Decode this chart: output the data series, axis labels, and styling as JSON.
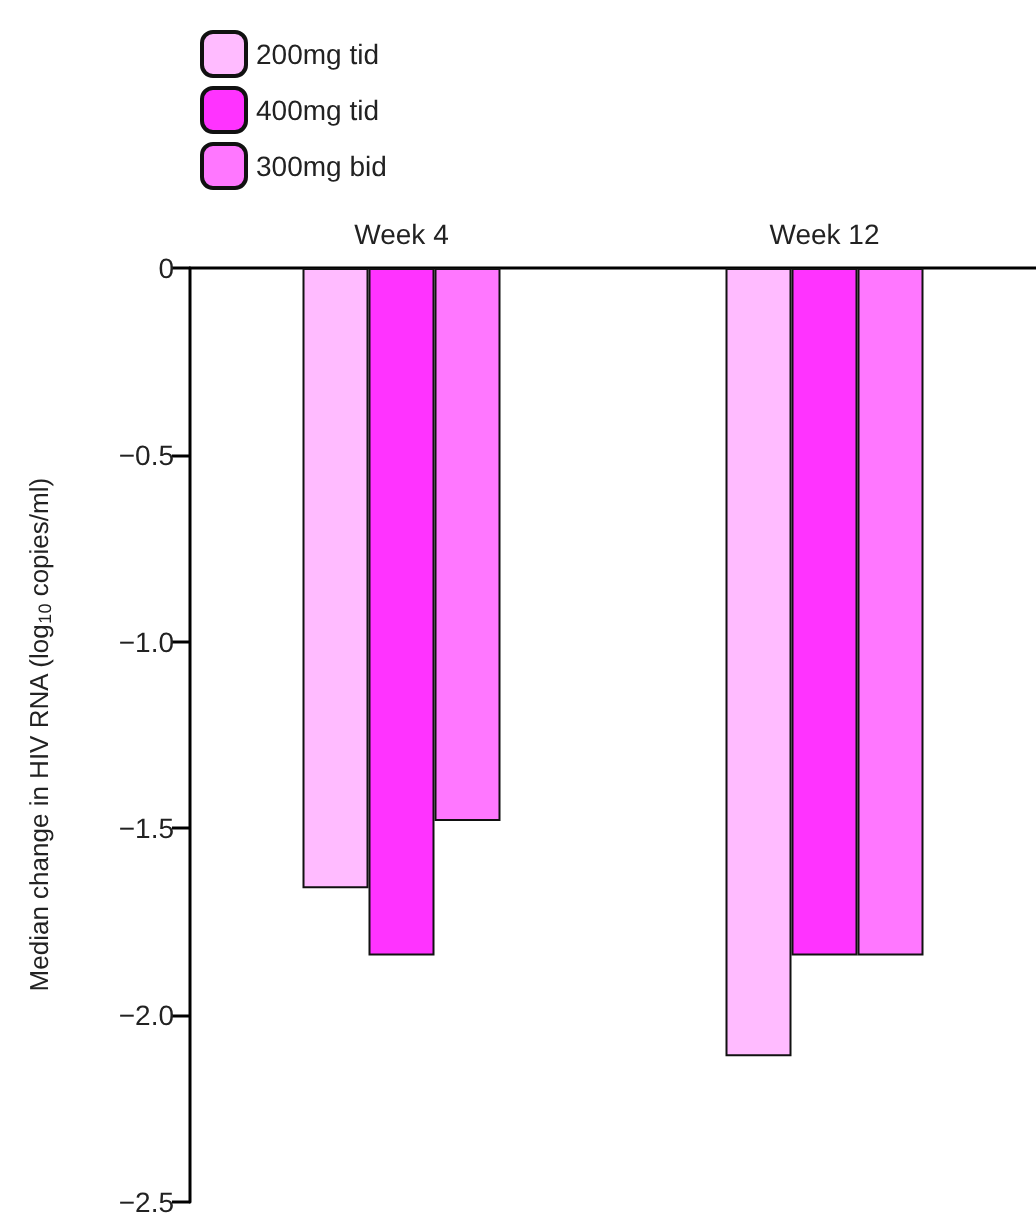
{
  "chart_data": {
    "type": "bar",
    "ylabel": "Median change in HIV RNA (log$_{10}$ copies/ml)",
    "categories": [
      "Week 4",
      "Week 12"
    ],
    "series": [
      {
        "name": "200mg tid",
        "color": "#ffbbff",
        "values": [
          -1.66,
          -2.11
        ]
      },
      {
        "name": "400mg tid",
        "color": "#ff33ff",
        "values": [
          -1.84,
          -1.84
        ]
      },
      {
        "name": "300mg bid",
        "color": "#ff77ff",
        "values": [
          -1.48,
          -1.84
        ]
      }
    ],
    "ylim": [
      -2.5,
      0
    ],
    "yticks": [
      {
        "value": 0,
        "label": "0"
      },
      {
        "value": -0.5,
        "label": "−0.5"
      },
      {
        "value": -1,
        "label": "−1.0"
      },
      {
        "value": -1.5,
        "label": "−1.5"
      },
      {
        "value": -2,
        "label": "−2.0"
      },
      {
        "value": -2.5,
        "label": "−2.5"
      }
    ],
    "grid": false,
    "legend": "top left"
  }
}
